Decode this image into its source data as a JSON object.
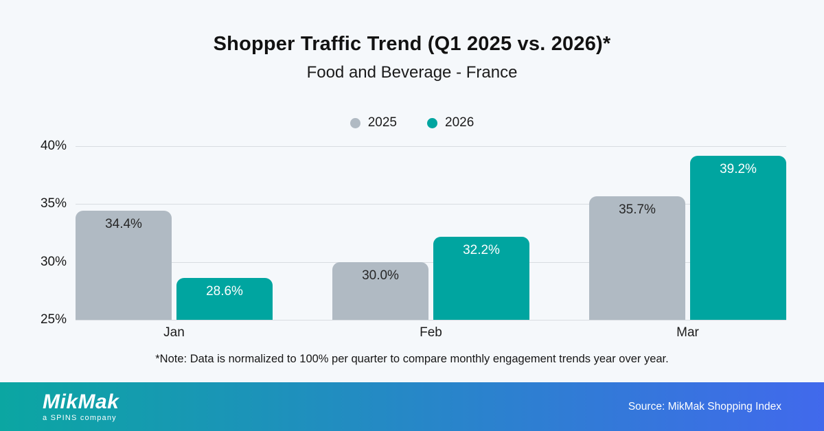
{
  "title": "Shopper Traffic Trend (Q1 2025 vs. 2026)*",
  "subtitle": "Food and Beverage - France",
  "legend": [
    {
      "label": "2025",
      "color": "#b0bac3"
    },
    {
      "label": "2026",
      "color": "#00a5a0"
    }
  ],
  "chart_data": {
    "type": "bar",
    "categories": [
      "Jan",
      "Feb",
      "Mar"
    ],
    "series": [
      {
        "name": "2025",
        "color": "#b0bac3",
        "label_color": "#262626",
        "values": [
          34.4,
          30.0,
          35.7
        ]
      },
      {
        "name": "2026",
        "color": "#00a5a0",
        "label_color": "#ffffff",
        "values": [
          28.6,
          32.2,
          39.2
        ]
      }
    ],
    "value_label_format": "percent_one_decimal",
    "title": "Shopper Traffic Trend (Q1 2025 vs. 2026)*",
    "subtitle": "Food and Beverage - France",
    "xlabel": "",
    "ylabel": "",
    "ylim": [
      25,
      40
    ],
    "y_ticks": [
      {
        "value": 40,
        "label": "40%"
      },
      {
        "value": 35,
        "label": "35%"
      },
      {
        "value": 30,
        "label": "30%"
      },
      {
        "value": 25,
        "label": "25%"
      }
    ],
    "grid": true,
    "legend_position": "top"
  },
  "note": "*Note: Data is normalized to 100% per quarter to compare monthly engagement trends year over year.",
  "footer": {
    "logo_text": "MikMak",
    "logo_tagline": "a SPINS company",
    "source": "Source: MikMak Shopping Index",
    "gradient_start": "#0ba6a2",
    "gradient_end": "#4169ec"
  },
  "colors": {
    "background": "#f5f8fb",
    "gridline": "#d8dce1",
    "bar_gray": "#b0bac3",
    "bar_teal": "#00a5a0"
  }
}
